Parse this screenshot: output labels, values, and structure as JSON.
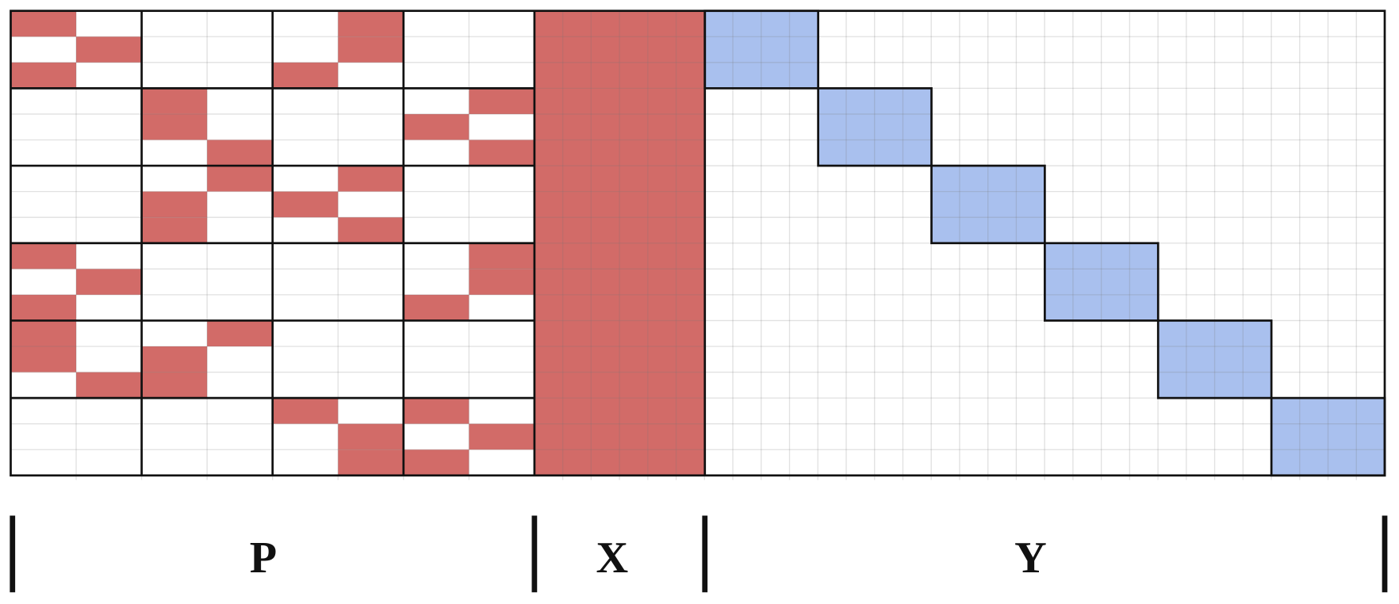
{
  "regions": [
    {
      "label": "P"
    },
    {
      "label": "X"
    },
    {
      "label": "Y"
    }
  ]
}
